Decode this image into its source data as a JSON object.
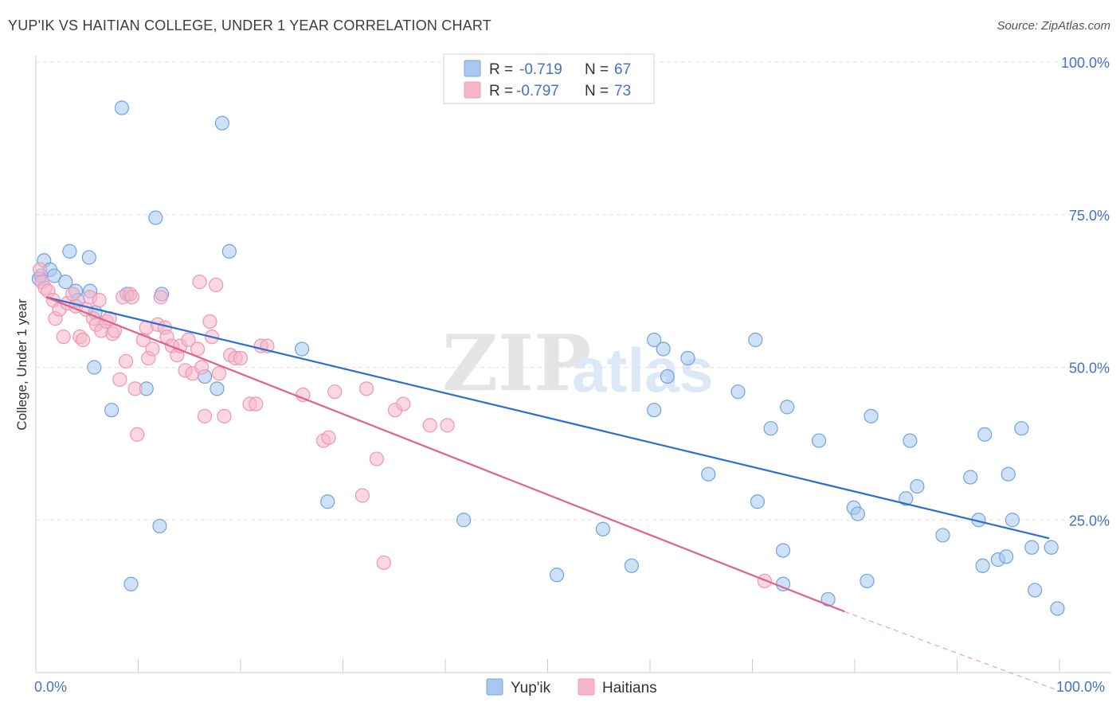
{
  "title": "YUP'IK VS HAITIAN COLLEGE, UNDER 1 YEAR CORRELATION CHART",
  "source": "Source: ZipAtlas.com",
  "watermark": {
    "zip": "ZIP",
    "atlas": "atlas"
  },
  "legend_top": [
    {
      "r_label": "R =",
      "r_value": "-0.719",
      "n_label": "N =",
      "n_value": "67",
      "color": "#a8c8ef"
    },
    {
      "r_label": "R =",
      "r_value": "-0.797",
      "n_label": "N =",
      "n_value": "73",
      "color": "#f5b6c8"
    }
  ],
  "legend_bottom": [
    {
      "label": "Yup'ik",
      "color": "#a8c8ef"
    },
    {
      "label": "Haitians",
      "color": "#f5b6c8"
    }
  ],
  "chart_data": {
    "type": "scatter",
    "title": "YUP'IK VS HAITIAN COLLEGE, UNDER 1 YEAR CORRELATION CHART",
    "xlabel": "",
    "ylabel": "College, Under 1 year",
    "xlim": [
      0,
      100
    ],
    "ylim": [
      0,
      100
    ],
    "x_tick_labels": [
      "0.0%",
      "100.0%"
    ],
    "y_tick_labels": [
      "100.0%",
      "75.0%",
      "50.0%",
      "25.0%"
    ],
    "y_ticks": [
      100,
      75,
      50,
      25
    ],
    "grid": true,
    "series": [
      {
        "name": "Yup'ik",
        "color": "#6fa3e0",
        "fill": "#a8c8ef",
        "line_color": "#2a6fd0",
        "trend": {
          "x": [
            1,
            99
          ],
          "y": [
            61.5,
            22
          ]
        },
        "points": [
          [
            0.5,
            65
          ],
          [
            0.8,
            67.5
          ],
          [
            1.4,
            66
          ],
          [
            1.8,
            65
          ],
          [
            2.9,
            64
          ],
          [
            3.3,
            69
          ],
          [
            3.9,
            62.5
          ],
          [
            4.1,
            61
          ],
          [
            5.2,
            68
          ],
          [
            5.3,
            62.5
          ],
          [
            5.8,
            59
          ],
          [
            5.7,
            50
          ],
          [
            7.4,
            43
          ],
          [
            8.4,
            92.5
          ],
          [
            8.9,
            62
          ],
          [
            9.3,
            14.5
          ],
          [
            10.8,
            46.5
          ],
          [
            11.7,
            74.5
          ],
          [
            12.1,
            24
          ],
          [
            12.3,
            62
          ],
          [
            16.5,
            48.5
          ],
          [
            17.7,
            46.5
          ],
          [
            18.2,
            90
          ],
          [
            18.9,
            69
          ],
          [
            26,
            53
          ],
          [
            28.5,
            28
          ],
          [
            41.8,
            25
          ],
          [
            50.9,
            16
          ],
          [
            55.4,
            23.5
          ],
          [
            58.2,
            17.5
          ],
          [
            60.4,
            43
          ],
          [
            60.4,
            54.5
          ],
          [
            61.3,
            53
          ],
          [
            61.7,
            48.5
          ],
          [
            63.7,
            51.5
          ],
          [
            65.7,
            32.5
          ],
          [
            68.6,
            46
          ],
          [
            70.5,
            28
          ],
          [
            70.3,
            54.5
          ],
          [
            71.8,
            40
          ],
          [
            73,
            20
          ],
          [
            73,
            14.5
          ],
          [
            73.4,
            43.5
          ],
          [
            76.5,
            38
          ],
          [
            77.4,
            12
          ],
          [
            79.9,
            27
          ],
          [
            80.3,
            26
          ],
          [
            81.2,
            15
          ],
          [
            81.6,
            42
          ],
          [
            85,
            28.5
          ],
          [
            85.4,
            38
          ],
          [
            86.1,
            30.5
          ],
          [
            88.6,
            22.5
          ],
          [
            91.3,
            32
          ],
          [
            92.1,
            25
          ],
          [
            92.5,
            17.5
          ],
          [
            92.7,
            39
          ],
          [
            94,
            18.5
          ],
          [
            94.8,
            19
          ],
          [
            95,
            32.5
          ],
          [
            95.4,
            25
          ],
          [
            96.3,
            40
          ],
          [
            97.3,
            20.5
          ],
          [
            97.6,
            13.5
          ],
          [
            99.2,
            20.5
          ],
          [
            99.8,
            10.5
          ],
          [
            0.3,
            64.5
          ]
        ]
      },
      {
        "name": "Haitians",
        "color": "#ef96b2",
        "fill": "#f5b6c8",
        "line_color": "#e0608e",
        "trend": {
          "x": [
            1,
            79
          ],
          "y": [
            61.5,
            10
          ]
        },
        "trend_dashed": {
          "x": [
            79,
            100
          ],
          "y": [
            10,
            -3
          ]
        },
        "points": [
          [
            0.4,
            66
          ],
          [
            0.6,
            64
          ],
          [
            0.9,
            63
          ],
          [
            1.2,
            62.5
          ],
          [
            1.7,
            61
          ],
          [
            1.9,
            58
          ],
          [
            2.3,
            59.5
          ],
          [
            2.7,
            55
          ],
          [
            3.1,
            60.5
          ],
          [
            3.6,
            62
          ],
          [
            3.9,
            60
          ],
          [
            4.3,
            55
          ],
          [
            4.6,
            54.5
          ],
          [
            4.9,
            59.5
          ],
          [
            5.3,
            61.5
          ],
          [
            5.6,
            58
          ],
          [
            5.9,
            57
          ],
          [
            6.2,
            61
          ],
          [
            6.4,
            56
          ],
          [
            6.9,
            57.5
          ],
          [
            7.2,
            58
          ],
          [
            7.5,
            55.5
          ],
          [
            7.7,
            56
          ],
          [
            8.2,
            48
          ],
          [
            8.5,
            61.5
          ],
          [
            8.8,
            51
          ],
          [
            9.2,
            62
          ],
          [
            9.4,
            61.5
          ],
          [
            9.7,
            46.5
          ],
          [
            9.9,
            39
          ],
          [
            10.5,
            54.5
          ],
          [
            10.8,
            56.5
          ],
          [
            11,
            51.5
          ],
          [
            11.4,
            53
          ],
          [
            11.9,
            57
          ],
          [
            12.2,
            61.5
          ],
          [
            12.6,
            56.5
          ],
          [
            12.8,
            55
          ],
          [
            13.3,
            53.5
          ],
          [
            13.8,
            52
          ],
          [
            14.1,
            53.5
          ],
          [
            14.6,
            49.5
          ],
          [
            14.9,
            54.5
          ],
          [
            15.3,
            49
          ],
          [
            15.8,
            53
          ],
          [
            16.2,
            50
          ],
          [
            16.5,
            42
          ],
          [
            17,
            57.5
          ],
          [
            17.2,
            55
          ],
          [
            17.6,
            63.5
          ],
          [
            17.9,
            49
          ],
          [
            18.4,
            42
          ],
          [
            19,
            52
          ],
          [
            19.5,
            51.5
          ],
          [
            20,
            51.5
          ],
          [
            20.9,
            44
          ],
          [
            21.5,
            44
          ],
          [
            22,
            53.5
          ],
          [
            22.6,
            53.5
          ],
          [
            16,
            64
          ],
          [
            26.1,
            45.5
          ],
          [
            28.1,
            38
          ],
          [
            28.6,
            38.5
          ],
          [
            29.2,
            46
          ],
          [
            31.9,
            29
          ],
          [
            32.3,
            46.5
          ],
          [
            33.3,
            35
          ],
          [
            34,
            18
          ],
          [
            35.1,
            43
          ],
          [
            35.9,
            44
          ],
          [
            38.5,
            40.5
          ],
          [
            40.2,
            40.5
          ],
          [
            71.2,
            15
          ]
        ]
      }
    ]
  }
}
